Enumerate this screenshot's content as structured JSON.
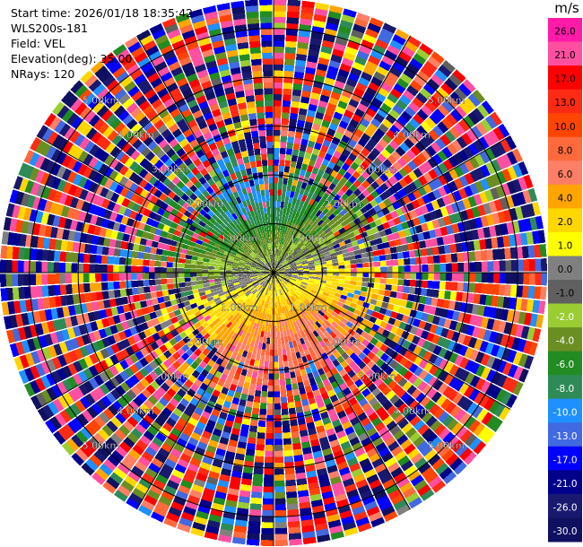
{
  "header": {
    "start_time": "Start time: 2026/01/18 18:35:42",
    "instrument": "WLS200s-181",
    "field": "Field: VEL",
    "elevation": "Elevation(deg): 35.00",
    "nrays": "NRays: 120"
  },
  "colorbar": {
    "unit": "m/s",
    "ticks": [
      "26.0",
      "21.0",
      "17.0",
      "13.0",
      "10.0",
      "8.0",
      "6.0",
      "4.0",
      "2.0",
      "1.0",
      "0.0",
      "-1.0",
      "-2.0",
      "-4.0",
      "-6.0",
      "-8.0",
      "-10.0",
      "-13.0",
      "-17.0",
      "-21.0",
      "-26.0",
      "-30.0"
    ],
    "colors": [
      "#ff1aa8",
      "#ff4fa0",
      "#ff0000",
      "#ff2a14",
      "#ff4500",
      "#ff6a3d",
      "#ff7f66",
      "#ffa500",
      "#ffd700",
      "#ffff00",
      "#808080",
      "#606060",
      "#9acd32",
      "#6b8e23",
      "#228b22",
      "#2e8b57",
      "#1e90ff",
      "#4169e1",
      "#0000ff",
      "#00008b",
      "#191970",
      "#101060"
    ]
  },
  "chart_data": {
    "type": "heatmap",
    "projection": "polar-ppi",
    "field": "VEL",
    "units": "m/s",
    "nrays": 120,
    "range_rings_km": [
      {
        "range": 1.0,
        "label": "1.00km"
      },
      {
        "range": 2.0,
        "label": "2.00km"
      },
      {
        "range": 3.0,
        "label": "3.00km"
      },
      {
        "range": 4.0,
        "label": "4.00km"
      },
      {
        "range": 5.0,
        "label": "5.00km"
      }
    ],
    "max_range_km": 5.6,
    "vmin": -30.0,
    "vmax": 26.0
  }
}
